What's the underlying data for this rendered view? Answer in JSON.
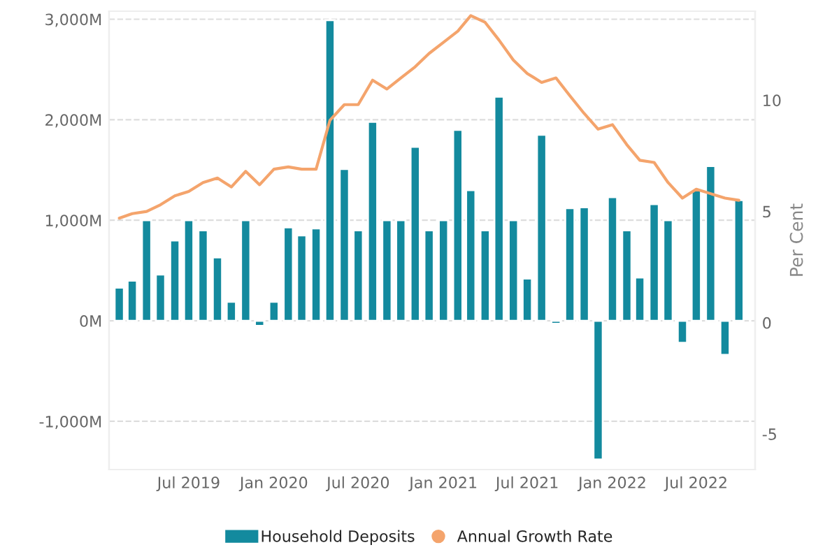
{
  "chart_data": {
    "type": "bar",
    "y2label": "Per Cent",
    "x": [
      "2019-02",
      "2019-03",
      "2019-04",
      "2019-05",
      "2019-06",
      "2019-07",
      "2019-08",
      "2019-09",
      "2019-10",
      "2019-11",
      "2019-12",
      "2020-01",
      "2020-02",
      "2020-03",
      "2020-04",
      "2020-05",
      "2020-06",
      "2020-07",
      "2020-08",
      "2020-09",
      "2020-10",
      "2020-11",
      "2020-12",
      "2021-01",
      "2021-02",
      "2021-03",
      "2021-04",
      "2021-05",
      "2021-06",
      "2021-07",
      "2021-08",
      "2021-09",
      "2021-10",
      "2021-11",
      "2021-12",
      "2022-01",
      "2022-02",
      "2022-03",
      "2022-04",
      "2022-05",
      "2022-06",
      "2022-07",
      "2022-08",
      "2022-09",
      "2022-10"
    ],
    "series": [
      {
        "name": "Household Deposits",
        "color": "#138a9e",
        "values": [
          330,
          400,
          1000,
          460,
          800,
          1000,
          900,
          630,
          190,
          1000,
          -50,
          190,
          930,
          850,
          920,
          2990,
          1510,
          900,
          1980,
          1000,
          1000,
          1730,
          900,
          1000,
          1900,
          1300,
          900,
          2230,
          1000,
          420,
          1850,
          -30,
          1120,
          1130,
          -1380,
          1230,
          900,
          430,
          1160,
          1000,
          -220,
          1300,
          1540,
          -340,
          1200
        ]
      },
      {
        "name": "Annual Growth Rate",
        "type": "line",
        "axis": "y2",
        "color": "#f4a46c",
        "values": [
          4.7,
          4.9,
          5.0,
          5.3,
          5.7,
          5.9,
          6.3,
          6.5,
          6.1,
          6.8,
          6.2,
          6.9,
          7.0,
          6.9,
          6.9,
          9.1,
          9.8,
          9.8,
          10.9,
          10.5,
          11.0,
          11.5,
          12.1,
          12.6,
          13.1,
          13.8,
          13.5,
          12.7,
          11.8,
          11.2,
          10.8,
          11.0,
          10.2,
          9.4,
          8.7,
          8.9,
          8.0,
          7.3,
          7.2,
          6.3,
          5.6,
          6.0,
          5.8,
          5.6,
          5.5
        ]
      }
    ],
    "xlim": [
      "2019-01-10",
      "2022-11-05"
    ],
    "xticks": [
      {
        "value": "2019-07",
        "label": "Jul 2019"
      },
      {
        "value": "2020-01",
        "label": "Jan 2020"
      },
      {
        "value": "2020-07",
        "label": "Jul 2020"
      },
      {
        "value": "2021-01",
        "label": "Jan 2021"
      },
      {
        "value": "2021-07",
        "label": "Jul 2021"
      },
      {
        "value": "2022-01",
        "label": "Jan 2022"
      },
      {
        "value": "2022-07",
        "label": "Jul 2022"
      }
    ],
    "ylim": [
      -1480,
      3080
    ],
    "yticks": [
      {
        "value": -1000,
        "label": "-1,000M"
      },
      {
        "value": 0,
        "label": "0M"
      },
      {
        "value": 1000,
        "label": "1,000M"
      },
      {
        "value": 2000,
        "label": "2,000M"
      },
      {
        "value": 3000,
        "label": "3,000M"
      }
    ],
    "y2lim": [
      -6.6,
      14
    ],
    "y2ticks": [
      -5,
      0,
      5,
      10
    ],
    "grid": "y",
    "legend": "bottom",
    "marker": "none",
    "line_style": "solid"
  }
}
